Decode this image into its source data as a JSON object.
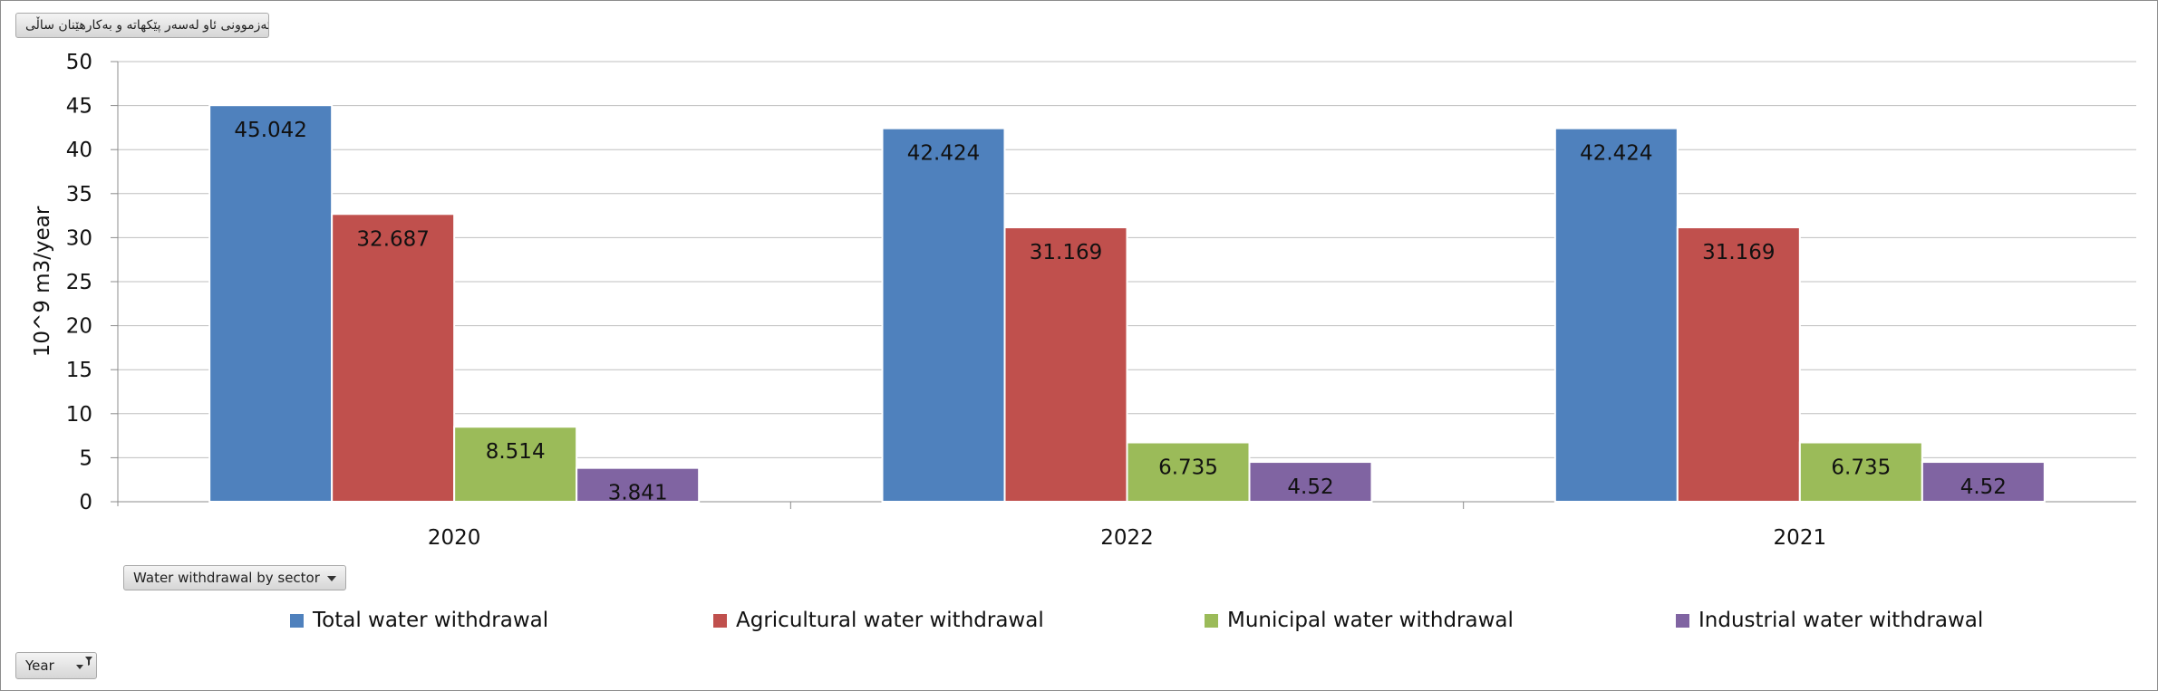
{
  "controls": {
    "chart_title_button": "ئەزموونی ئاو لەسەر پێکهاتە و بەکارهێنان ساڵی",
    "series_field_button": "Water withdrawal by sector",
    "category_field_button": "Year"
  },
  "chart_data": {
    "type": "bar",
    "categories": [
      "2020",
      "2022",
      "2021"
    ],
    "ylabel": "10^9 m3/year",
    "ylim": [
      0,
      50
    ],
    "yticks": [
      0,
      5,
      10,
      15,
      20,
      25,
      30,
      35,
      40,
      45,
      50
    ],
    "grid": true,
    "legend_position": "bottom",
    "series": [
      {
        "name": "Total water withdrawal",
        "color": "#4f81bd",
        "values": [
          45.042,
          42.424,
          42.424
        ],
        "labels": [
          "45.042",
          "42.424",
          "42.424"
        ]
      },
      {
        "name": "Agricultural water withdrawal",
        "color": "#c0504d",
        "values": [
          32.687,
          31.169,
          31.169
        ],
        "labels": [
          "32.687",
          "31.169",
          "31.169"
        ]
      },
      {
        "name": "Municipal water withdrawal",
        "color": "#9bbb59",
        "values": [
          8.514,
          6.735,
          6.735
        ],
        "labels": [
          "8.514",
          "6.735",
          "6.735"
        ]
      },
      {
        "name": "Industrial water withdrawal",
        "color": "#8064a2",
        "values": [
          3.841,
          4.52,
          4.52
        ],
        "labels": [
          "3.841",
          "4.52",
          "4.52"
        ]
      }
    ]
  }
}
